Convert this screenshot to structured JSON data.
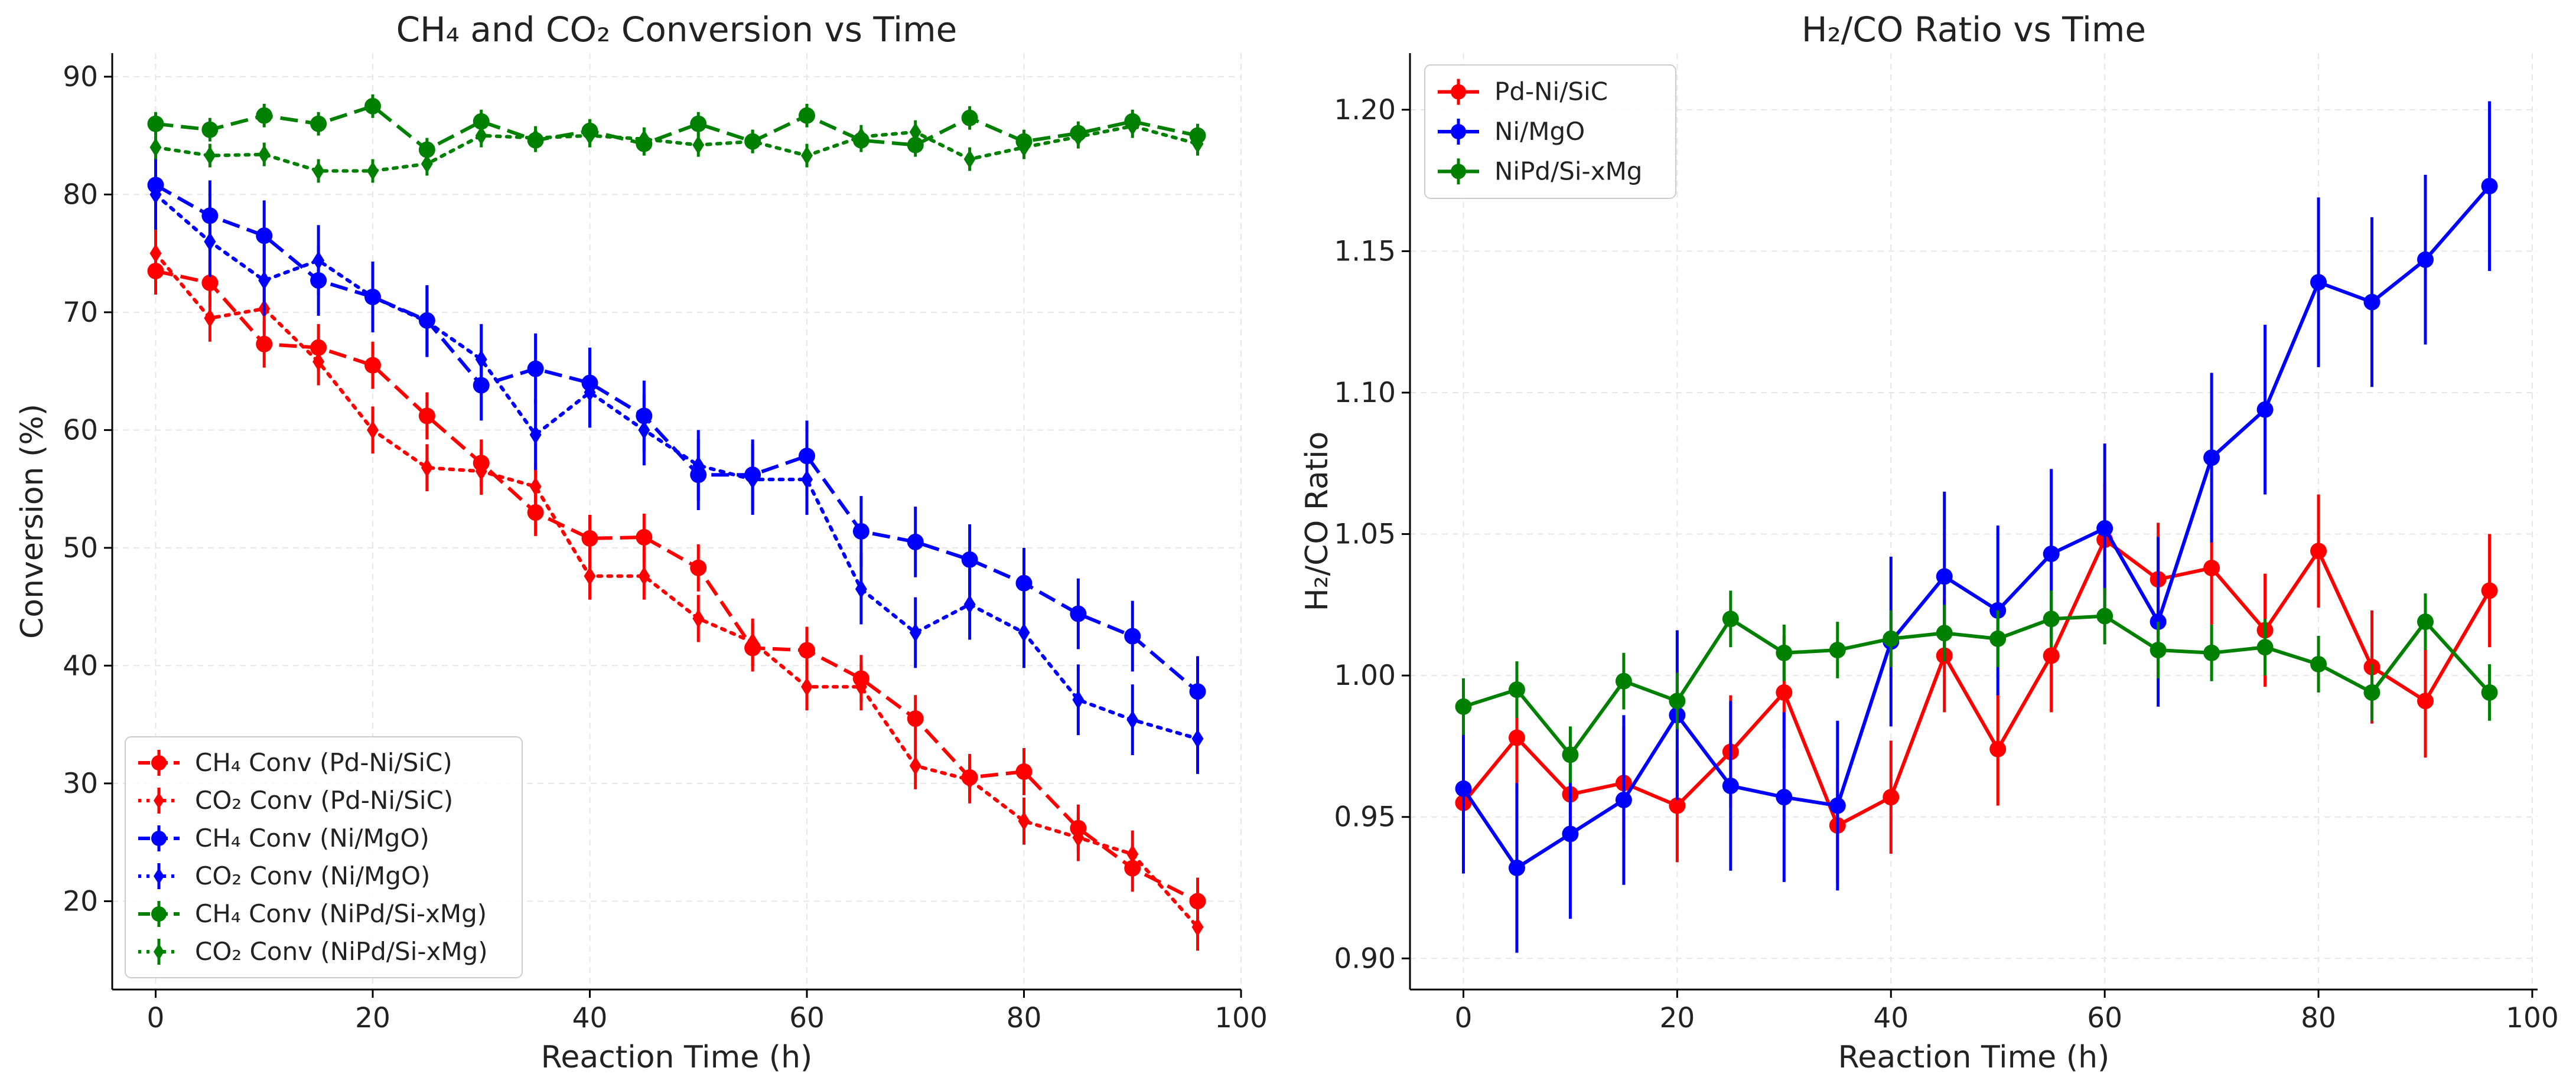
{
  "chart_data": [
    {
      "type": "line",
      "title": "CH₄ and CO₂ Conversion vs Time",
      "xlabel": "Reaction Time (h)",
      "ylabel": "Conversion (%)",
      "xlim": [
        -4,
        100
      ],
      "ylim": [
        12.5,
        92
      ],
      "xticks": [
        0,
        20,
        40,
        60,
        80,
        100
      ],
      "yticks": [
        20,
        30,
        40,
        50,
        60,
        70,
        80,
        90
      ],
      "grid": true,
      "legend": "lower-left",
      "series": [
        {
          "name": "CH₄ Conv (Pd-Ni/SiC)",
          "color": "#ff0000",
          "dash": "dashed",
          "x": [
            0,
            5,
            10,
            15,
            20,
            25,
            30,
            35,
            40,
            45,
            50,
            55,
            60,
            65,
            70,
            75,
            80,
            85,
            90,
            96
          ],
          "y": [
            73.5,
            72.5,
            67.3,
            67,
            65.5,
            61.2,
            57.2,
            53,
            50.8,
            50.9,
            48.3,
            41.5,
            41.3,
            38.9,
            35.5,
            30.5,
            31,
            26.2,
            22.8,
            20
          ],
          "err": [
            2,
            2,
            2,
            2,
            2,
            2,
            2,
            2,
            2,
            2,
            2,
            2,
            2,
            2,
            2,
            2,
            2,
            2,
            2,
            2
          ]
        },
        {
          "name": "CO₂ Conv (Pd-Ni/SiC)",
          "color": "#ff0000",
          "dash": "dotted",
          "x": [
            0,
            5,
            10,
            15,
            20,
            25,
            30,
            35,
            40,
            45,
            50,
            55,
            60,
            65,
            70,
            75,
            80,
            85,
            90,
            96
          ],
          "y": [
            75,
            69.5,
            70.3,
            65.8,
            60,
            56.8,
            56.5,
            55.2,
            47.6,
            47.6,
            44,
            42,
            38.2,
            38.2,
            31.5,
            30.3,
            26.8,
            25.4,
            24,
            17.8
          ],
          "err": [
            2,
            2,
            2,
            2,
            2,
            2,
            2,
            2,
            2,
            2,
            2,
            2,
            2,
            2,
            2,
            2,
            2,
            2,
            2,
            2
          ]
        },
        {
          "name": "CH₄ Conv (Ni/MgO)",
          "color": "#0000ff",
          "dash": "dashed",
          "x": [
            0,
            5,
            10,
            15,
            20,
            25,
            30,
            35,
            40,
            45,
            50,
            55,
            60,
            65,
            70,
            75,
            80,
            85,
            90,
            96
          ],
          "y": [
            80.8,
            78.2,
            76.5,
            72.7,
            71.3,
            69.3,
            63.8,
            65.2,
            64,
            61.2,
            56.2,
            56.2,
            57.8,
            51.4,
            50.5,
            49,
            47,
            44.4,
            42.5,
            37.8
          ],
          "err": [
            3,
            3,
            3,
            3,
            3,
            3,
            3,
            3,
            3,
            3,
            3,
            3,
            3,
            3,
            3,
            3,
            3,
            3,
            3,
            3
          ]
        },
        {
          "name": "CO₂ Conv (Ni/MgO)",
          "color": "#0000ff",
          "dash": "dotted",
          "x": [
            0,
            5,
            10,
            15,
            20,
            25,
            30,
            35,
            40,
            45,
            50,
            55,
            60,
            65,
            70,
            75,
            80,
            85,
            90,
            96
          ],
          "y": [
            80,
            76,
            72.7,
            74.4,
            71.3,
            69.2,
            66,
            59.6,
            63.2,
            60,
            57,
            55.8,
            55.8,
            46.5,
            42.8,
            45.2,
            42.8,
            37.1,
            35.4,
            33.8
          ],
          "err": [
            3,
            3,
            3,
            3,
            3,
            3,
            3,
            3,
            3,
            3,
            3,
            3,
            3,
            3,
            3,
            3,
            3,
            3,
            3,
            3
          ]
        },
        {
          "name": "CH₄ Conv (NiPd/Si-xMg)",
          "color": "#008000",
          "dash": "dashed",
          "x": [
            0,
            5,
            10,
            15,
            20,
            25,
            30,
            35,
            40,
            45,
            50,
            55,
            60,
            65,
            70,
            75,
            80,
            85,
            90,
            96
          ],
          "y": [
            86,
            85.5,
            86.7,
            86,
            87.5,
            83.8,
            86.2,
            84.6,
            85.4,
            84.3,
            86,
            84.5,
            86.7,
            84.6,
            84.2,
            86.5,
            84.5,
            85.2,
            86.2,
            85
          ],
          "err": [
            1,
            1,
            1,
            1,
            1,
            1,
            1,
            1,
            1,
            1,
            1,
            1,
            1,
            1,
            1,
            1,
            1,
            1,
            1,
            1
          ]
        },
        {
          "name": "CO₂ Conv (NiPd/Si-xMg)",
          "color": "#008000",
          "dash": "dotted",
          "x": [
            0,
            5,
            10,
            15,
            20,
            25,
            30,
            35,
            40,
            45,
            50,
            55,
            60,
            65,
            70,
            75,
            80,
            85,
            90,
            96
          ],
          "y": [
            84,
            83.3,
            83.4,
            82,
            82,
            82.6,
            85,
            84.8,
            85,
            84.7,
            84.2,
            84.5,
            83.3,
            84.9,
            85.3,
            83,
            84,
            84.9,
            85.8,
            84.3
          ],
          "err": [
            1,
            1,
            1,
            1,
            1,
            1,
            1,
            1,
            1,
            1,
            1,
            1,
            1,
            1,
            1,
            1,
            1,
            1,
            1,
            1
          ]
        }
      ]
    },
    {
      "type": "line",
      "title": "H₂/CO Ratio vs Time",
      "xlabel": "Reaction Time (h)",
      "ylabel": "H₂/CO Ratio",
      "xlim": [
        -5,
        100.5
      ],
      "ylim": [
        0.889,
        1.22
      ],
      "xticks": [
        0,
        20,
        40,
        60,
        80,
        100
      ],
      "yticks": [
        0.9,
        0.95,
        1.0,
        1.05,
        1.1,
        1.15,
        1.2
      ],
      "ytick_labels": [
        "0.90",
        "0.95",
        "1.00",
        "1.05",
        "1.10",
        "1.15",
        "1.20"
      ],
      "grid": true,
      "legend": "upper-left",
      "series": [
        {
          "name": "Pd-Ni/SiC",
          "color": "#ff0000",
          "dash": "solid",
          "x": [
            0,
            5,
            10,
            15,
            20,
            25,
            30,
            35,
            40,
            45,
            50,
            55,
            60,
            65,
            70,
            75,
            80,
            85,
            90,
            96
          ],
          "y": [
            0.955,
            0.978,
            0.958,
            0.962,
            0.954,
            0.973,
            0.994,
            0.947,
            0.957,
            1.007,
            0.974,
            1.007,
            1.048,
            1.034,
            1.038,
            1.016,
            1.044,
            1.003,
            0.991,
            1.03
          ],
          "err": [
            0.02,
            0.02,
            0.02,
            0.02,
            0.02,
            0.02,
            0.02,
            0.02,
            0.02,
            0.02,
            0.02,
            0.02,
            0.02,
            0.02,
            0.02,
            0.02,
            0.02,
            0.02,
            0.02,
            0.02
          ]
        },
        {
          "name": "Ni/MgO",
          "color": "#0000ff",
          "dash": "solid",
          "x": [
            0,
            5,
            10,
            15,
            20,
            25,
            30,
            35,
            40,
            45,
            50,
            55,
            60,
            65,
            70,
            75,
            80,
            85,
            90,
            96
          ],
          "y": [
            0.96,
            0.932,
            0.944,
            0.956,
            0.986,
            0.961,
            0.957,
            0.954,
            1.012,
            1.035,
            1.023,
            1.043,
            1.052,
            1.019,
            1.077,
            1.094,
            1.139,
            1.132,
            1.147,
            1.173
          ],
          "err": [
            0.03,
            0.03,
            0.03,
            0.03,
            0.03,
            0.03,
            0.03,
            0.03,
            0.03,
            0.03,
            0.03,
            0.03,
            0.03,
            0.03,
            0.03,
            0.03,
            0.03,
            0.03,
            0.03,
            0.03
          ]
        },
        {
          "name": "NiPd/Si-xMg",
          "color": "#008000",
          "dash": "solid",
          "x": [
            0,
            5,
            10,
            15,
            20,
            25,
            30,
            35,
            40,
            45,
            50,
            55,
            60,
            65,
            70,
            75,
            80,
            85,
            90,
            96
          ],
          "y": [
            0.989,
            0.995,
            0.972,
            0.998,
            0.991,
            1.02,
            1.008,
            1.009,
            1.013,
            1.015,
            1.013,
            1.02,
            1.021,
            1.009,
            1.008,
            1.01,
            1.004,
            0.994,
            1.019,
            0.994
          ],
          "err": [
            0.01,
            0.01,
            0.01,
            0.01,
            0.01,
            0.01,
            0.01,
            0.01,
            0.01,
            0.01,
            0.01,
            0.01,
            0.01,
            0.01,
            0.01,
            0.01,
            0.01,
            0.01,
            0.01,
            0.01
          ]
        }
      ]
    }
  ]
}
